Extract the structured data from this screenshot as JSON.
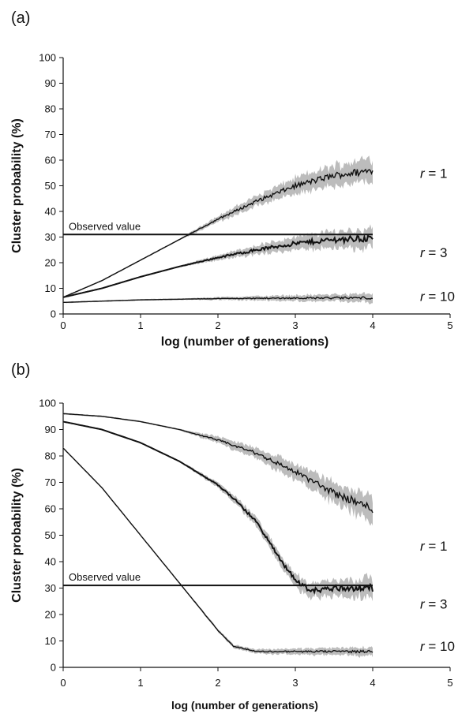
{
  "chart_data": [
    {
      "panel_label": "(a)",
      "type": "line",
      "xlabel": "log (number of generations)",
      "ylabel": "Cluster probability (%)",
      "xlim": [
        0,
        5
      ],
      "ylim": [
        0,
        100
      ],
      "xticks": [
        "0",
        "1",
        "2",
        "3",
        "4",
        "5"
      ],
      "yticks": [
        "0",
        "10",
        "20",
        "30",
        "40",
        "50",
        "60",
        "70",
        "80",
        "90",
        "100"
      ],
      "observed": {
        "label": "Observed value",
        "value": 31
      },
      "series": [
        {
          "label": "r = 1",
          "label_value": 55,
          "x": [
            0,
            0.5,
            1,
            1.5,
            2,
            2.5,
            3,
            3.5,
            4
          ],
          "y": [
            6.5,
            13,
            21,
            29,
            37,
            44,
            50,
            54,
            56
          ]
        },
        {
          "label": "r = 3",
          "label_value": 24,
          "x": [
            0,
            0.5,
            1,
            1.5,
            2,
            2.5,
            3,
            3.5,
            4
          ],
          "y": [
            6.5,
            10,
            14.5,
            18.5,
            22,
            25,
            27.5,
            29,
            29.5
          ]
        },
        {
          "label": "r = 10",
          "label_value": 7,
          "x": [
            0,
            1,
            2,
            3,
            4
          ],
          "y": [
            4.5,
            5.5,
            6,
            6.2,
            6.3
          ]
        }
      ]
    },
    {
      "panel_label": "(b)",
      "type": "line",
      "xlabel": "log (number of generations)",
      "ylabel": "Cluster probability (%)",
      "xlim": [
        0,
        5
      ],
      "ylim": [
        0,
        100
      ],
      "xticks": [
        "0",
        "1",
        "2",
        "3",
        "4",
        "5"
      ],
      "yticks": [
        "0",
        "10",
        "20",
        "30",
        "40",
        "50",
        "60",
        "70",
        "80",
        "90",
        "100"
      ],
      "observed": {
        "label": "Observed value",
        "value": 31
      },
      "series": [
        {
          "label": "r = 1",
          "label_value": 46,
          "x": [
            0,
            0.5,
            1,
            1.5,
            2,
            2.5,
            3,
            3.5,
            4
          ],
          "y": [
            96,
            95,
            93,
            90,
            86,
            81,
            74,
            66,
            60
          ]
        },
        {
          "label": "r = 3",
          "label_value": 24,
          "x": [
            0,
            0.5,
            1,
            1.5,
            2,
            2.2,
            2.5,
            2.8,
            3.0,
            3.2,
            3.5,
            4
          ],
          "y": [
            93,
            90,
            85,
            78,
            69,
            64,
            55,
            41,
            33,
            29,
            30,
            30
          ]
        },
        {
          "label": "r = 10",
          "label_value": 8,
          "x": [
            0,
            0.5,
            1,
            1.5,
            2,
            2.2,
            2.5,
            3,
            3.5,
            4
          ],
          "y": [
            83,
            68,
            50,
            32,
            14,
            8,
            6,
            6,
            6,
            6
          ]
        }
      ]
    }
  ]
}
